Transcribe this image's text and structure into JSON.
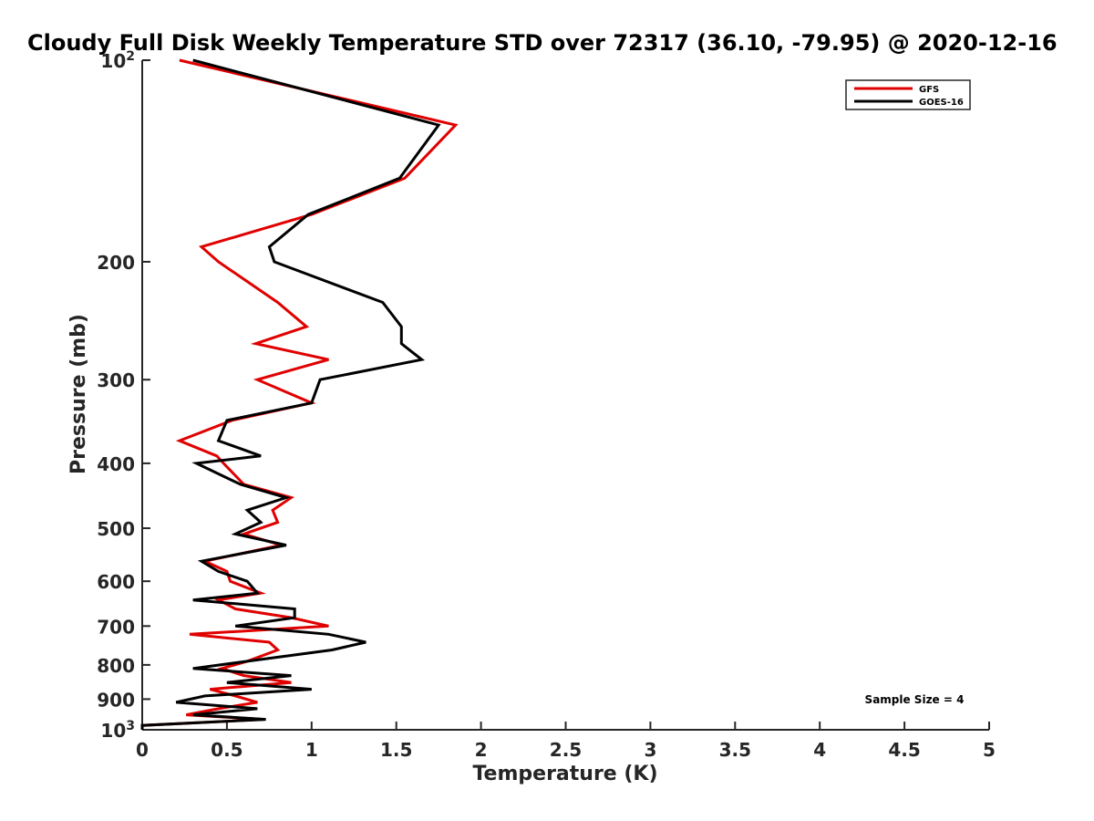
{
  "chart_data": {
    "type": "line",
    "title": "Cloudy Full Disk Weekly Temperature STD over 72317 (36.10, -79.95) @ 2020-12-16",
    "xlabel": "Temperature (K)",
    "ylabel": "Pressure (mb)",
    "xlim": [
      0,
      5
    ],
    "ylim": [
      100,
      1000
    ],
    "yscale": "log",
    "y_reversed": true,
    "xticks": [
      0,
      0.5,
      1,
      1.5,
      2,
      2.5,
      3,
      3.5,
      4,
      4.5,
      5
    ],
    "xtick_labels": [
      "0",
      "0.5",
      "1",
      "1.5",
      "2",
      "2.5",
      "3",
      "3.5",
      "4",
      "4.5",
      "5"
    ],
    "yticks": [
      100,
      200,
      300,
      400,
      500,
      600,
      700,
      800,
      900,
      1000
    ],
    "ytick_labels": [
      {
        "base": "10",
        "exp": "2"
      },
      {
        "base": "200",
        "exp": ""
      },
      {
        "base": "300",
        "exp": ""
      },
      {
        "base": "400",
        "exp": ""
      },
      {
        "base": "500",
        "exp": ""
      },
      {
        "base": "600",
        "exp": ""
      },
      {
        "base": "700",
        "exp": ""
      },
      {
        "base": "800",
        "exp": ""
      },
      {
        "base": "900",
        "exp": ""
      },
      {
        "base": "10",
        "exp": "3"
      }
    ],
    "legend": "top-right",
    "annotation": "Sample Size = 4",
    "series": [
      {
        "name": "GFS",
        "color": "#e00000",
        "points": [
          [
            0.22,
            100
          ],
          [
            1.85,
            125
          ],
          [
            1.55,
            150
          ],
          [
            1.0,
            170
          ],
          [
            0.35,
            190
          ],
          [
            0.45,
            200
          ],
          [
            0.8,
            230
          ],
          [
            0.97,
            250
          ],
          [
            0.67,
            265
          ],
          [
            1.1,
            280
          ],
          [
            0.68,
            300
          ],
          [
            1.0,
            325
          ],
          [
            0.53,
            345
          ],
          [
            0.22,
            370
          ],
          [
            0.44,
            390
          ],
          [
            0.48,
            400
          ],
          [
            0.6,
            430
          ],
          [
            0.88,
            450
          ],
          [
            0.77,
            470
          ],
          [
            0.8,
            490
          ],
          [
            0.6,
            510
          ],
          [
            0.82,
            530
          ],
          [
            0.37,
            560
          ],
          [
            0.5,
            580
          ],
          [
            0.52,
            600
          ],
          [
            0.7,
            625
          ],
          [
            0.45,
            640
          ],
          [
            0.55,
            660
          ],
          [
            0.88,
            680
          ],
          [
            1.1,
            700
          ],
          [
            0.28,
            720
          ],
          [
            0.75,
            740
          ],
          [
            0.8,
            760
          ],
          [
            0.62,
            790
          ],
          [
            0.47,
            810
          ],
          [
            0.6,
            830
          ],
          [
            0.88,
            850
          ],
          [
            0.4,
            870
          ],
          [
            0.55,
            890
          ],
          [
            0.68,
            910
          ],
          [
            0.45,
            930
          ],
          [
            0.26,
            950
          ],
          [
            0.72,
            965
          ],
          [
            0.0,
            985
          ],
          [
            0.0,
            1000
          ]
        ]
      },
      {
        "name": "GOES-16",
        "color": "#000000",
        "points": [
          [
            0.3,
            100
          ],
          [
            1.75,
            125
          ],
          [
            1.52,
            150
          ],
          [
            0.98,
            170
          ],
          [
            0.75,
            190
          ],
          [
            0.78,
            200
          ],
          [
            1.42,
            230
          ],
          [
            1.53,
            250
          ],
          [
            1.53,
            265
          ],
          [
            1.65,
            280
          ],
          [
            1.05,
            300
          ],
          [
            1.0,
            325
          ],
          [
            0.5,
            345
          ],
          [
            0.45,
            370
          ],
          [
            0.7,
            390
          ],
          [
            0.32,
            400
          ],
          [
            0.58,
            430
          ],
          [
            0.85,
            450
          ],
          [
            0.62,
            470
          ],
          [
            0.7,
            490
          ],
          [
            0.55,
            510
          ],
          [
            0.85,
            530
          ],
          [
            0.35,
            560
          ],
          [
            0.45,
            580
          ],
          [
            0.62,
            600
          ],
          [
            0.68,
            625
          ],
          [
            0.3,
            640
          ],
          [
            0.9,
            660
          ],
          [
            0.9,
            680
          ],
          [
            0.55,
            700
          ],
          [
            1.1,
            720
          ],
          [
            1.32,
            740
          ],
          [
            1.12,
            760
          ],
          [
            0.62,
            790
          ],
          [
            0.3,
            810
          ],
          [
            0.88,
            830
          ],
          [
            0.5,
            850
          ],
          [
            1.0,
            870
          ],
          [
            0.37,
            890
          ],
          [
            0.2,
            910
          ],
          [
            0.68,
            930
          ],
          [
            0.3,
            950
          ],
          [
            0.73,
            965
          ],
          [
            0.0,
            985
          ],
          [
            0.0,
            1000
          ]
        ]
      }
    ]
  }
}
